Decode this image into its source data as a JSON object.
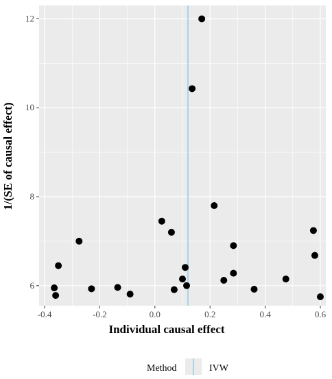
{
  "chart_data": {
    "type": "scatter",
    "xlabel": "Individual causal effect",
    "ylabel": "1/(SE of causal effect)",
    "xlim": [
      -0.42,
      0.62
    ],
    "ylim": [
      5.55,
      12.3
    ],
    "x_ticks": [
      -0.4,
      -0.2,
      0.0,
      0.2,
      0.4,
      0.6
    ],
    "x_tick_labels": [
      "-0.4",
      "-0.2",
      "0.0",
      "0.2",
      "0.4",
      "0.6"
    ],
    "y_ticks": [
      6,
      8,
      10,
      12
    ],
    "y_tick_labels": [
      "6",
      "8",
      "10",
      "12"
    ],
    "grid": true,
    "background": "#ebebeb",
    "points": [
      {
        "x": 0.17,
        "y": 12.0
      },
      {
        "x": 0.135,
        "y": 10.43
      },
      {
        "x": 0.215,
        "y": 7.8
      },
      {
        "x": 0.025,
        "y": 7.45
      },
      {
        "x": 0.06,
        "y": 7.2
      },
      {
        "x": 0.575,
        "y": 7.24
      },
      {
        "x": -0.275,
        "y": 7.0
      },
      {
        "x": 0.285,
        "y": 6.9
      },
      {
        "x": 0.58,
        "y": 6.68
      },
      {
        "x": -0.35,
        "y": 6.45
      },
      {
        "x": 0.11,
        "y": 6.41
      },
      {
        "x": 0.285,
        "y": 6.28
      },
      {
        "x": 0.1,
        "y": 6.15
      },
      {
        "x": 0.25,
        "y": 6.12
      },
      {
        "x": 0.475,
        "y": 6.15
      },
      {
        "x": 0.115,
        "y": 6.0
      },
      {
        "x": -0.365,
        "y": 5.95
      },
      {
        "x": -0.23,
        "y": 5.93
      },
      {
        "x": -0.135,
        "y": 5.96
      },
      {
        "x": 0.07,
        "y": 5.91
      },
      {
        "x": 0.36,
        "y": 5.92
      },
      {
        "x": -0.36,
        "y": 5.78
      },
      {
        "x": -0.09,
        "y": 5.81
      },
      {
        "x": 0.6,
        "y": 5.75
      }
    ],
    "point_color": "#000000",
    "reference_lines": [
      {
        "method": "IVW",
        "x": 0.12,
        "color": "#a6d4e6"
      }
    ],
    "legend": {
      "title": "Method",
      "entries": [
        {
          "label": "IVW",
          "color": "#a6d4e6"
        }
      ],
      "position": "bottom"
    }
  }
}
